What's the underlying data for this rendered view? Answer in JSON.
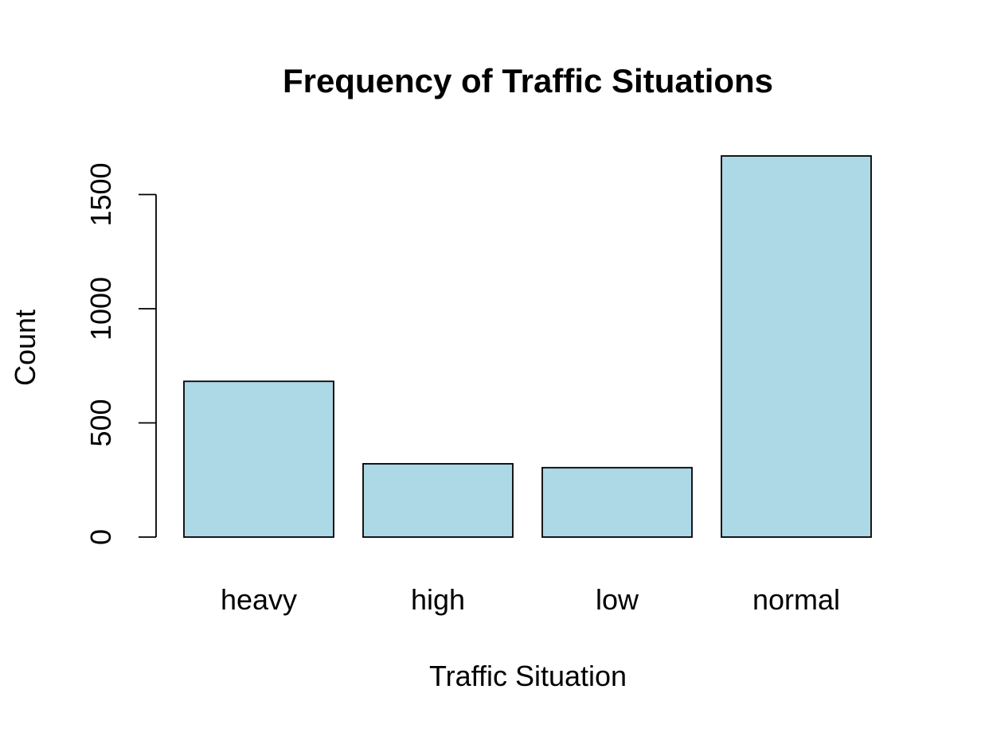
{
  "chart_data": {
    "type": "bar",
    "title": "Frequency of Traffic Situations",
    "xlabel": "Traffic Situation",
    "ylabel": "Count",
    "categories": [
      "heavy",
      "high",
      "low",
      "normal"
    ],
    "values": [
      682,
      321,
      304,
      1669
    ],
    "ylim": [
      0,
      1669
    ],
    "yticks": [
      0,
      500,
      1000,
      1500
    ],
    "ytick_labels": [
      "0",
      "500",
      "1000",
      "1500"
    ],
    "bar_color": "#ADD8E6",
    "grid": false,
    "legend": "none"
  }
}
